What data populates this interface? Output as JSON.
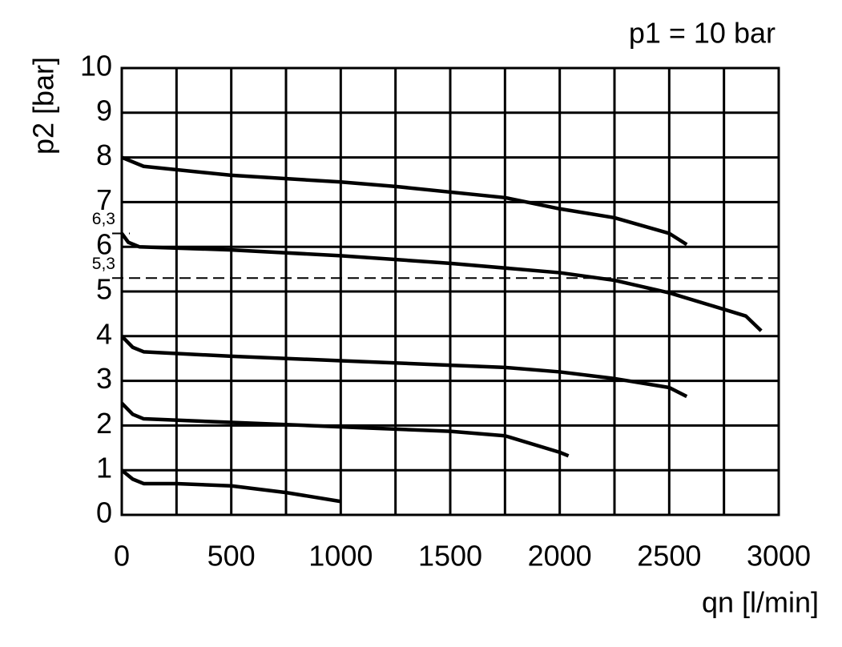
{
  "chart_data": {
    "type": "line",
    "title": "p1 = 10 bar",
    "x_label": "qn [l/min]",
    "y_label": "p2 [bar]",
    "xlim": [
      0,
      3000
    ],
    "ylim": [
      0,
      10
    ],
    "xticks": [
      0,
      500,
      1000,
      1500,
      2000,
      2500,
      3000
    ],
    "x_minor_ticks": [
      250,
      750,
      1250,
      1750,
      2250,
      2750
    ],
    "yticks": [
      0,
      1,
      2,
      3,
      4,
      5,
      6,
      7,
      8,
      9,
      10
    ],
    "grid": true,
    "annotations": [
      {
        "label": "6,3",
        "value": 6.3,
        "style": "short-dash"
      },
      {
        "label": "5,3",
        "value": 5.3,
        "style": "full-dash"
      }
    ],
    "series": [
      {
        "color": "#000000",
        "x": [
          0,
          100,
          500,
          1000,
          1250,
          1750,
          2000,
          2250,
          2500,
          2580
        ],
        "values": [
          8.0,
          7.8,
          7.6,
          7.45,
          7.35,
          7.1,
          6.85,
          6.65,
          6.3,
          6.05
        ]
      },
      {
        "color": "#000000",
        "x": [
          0,
          30,
          80,
          500,
          1000,
          1500,
          2000,
          2250,
          2500,
          2750,
          2850,
          2920
        ],
        "values": [
          6.3,
          6.1,
          6.0,
          5.93,
          5.8,
          5.63,
          5.42,
          5.25,
          4.97,
          4.6,
          4.45,
          4.12
        ]
      },
      {
        "color": "#000000",
        "x": [
          0,
          50,
          100,
          500,
          1000,
          1500,
          1750,
          2000,
          2250,
          2500,
          2580
        ],
        "values": [
          4.0,
          3.75,
          3.65,
          3.55,
          3.45,
          3.35,
          3.3,
          3.2,
          3.05,
          2.85,
          2.65
        ]
      },
      {
        "color": "#000000",
        "x": [
          0,
          50,
          100,
          500,
          1000,
          1500,
          1750,
          2000,
          2040
        ],
        "values": [
          2.5,
          2.25,
          2.15,
          2.07,
          1.97,
          1.87,
          1.77,
          1.4,
          1.32
        ]
      },
      {
        "color": "#000000",
        "x": [
          0,
          50,
          100,
          250,
          500,
          750,
          1000
        ],
        "values": [
          1.0,
          0.8,
          0.7,
          0.7,
          0.65,
          0.5,
          0.3
        ]
      }
    ]
  }
}
